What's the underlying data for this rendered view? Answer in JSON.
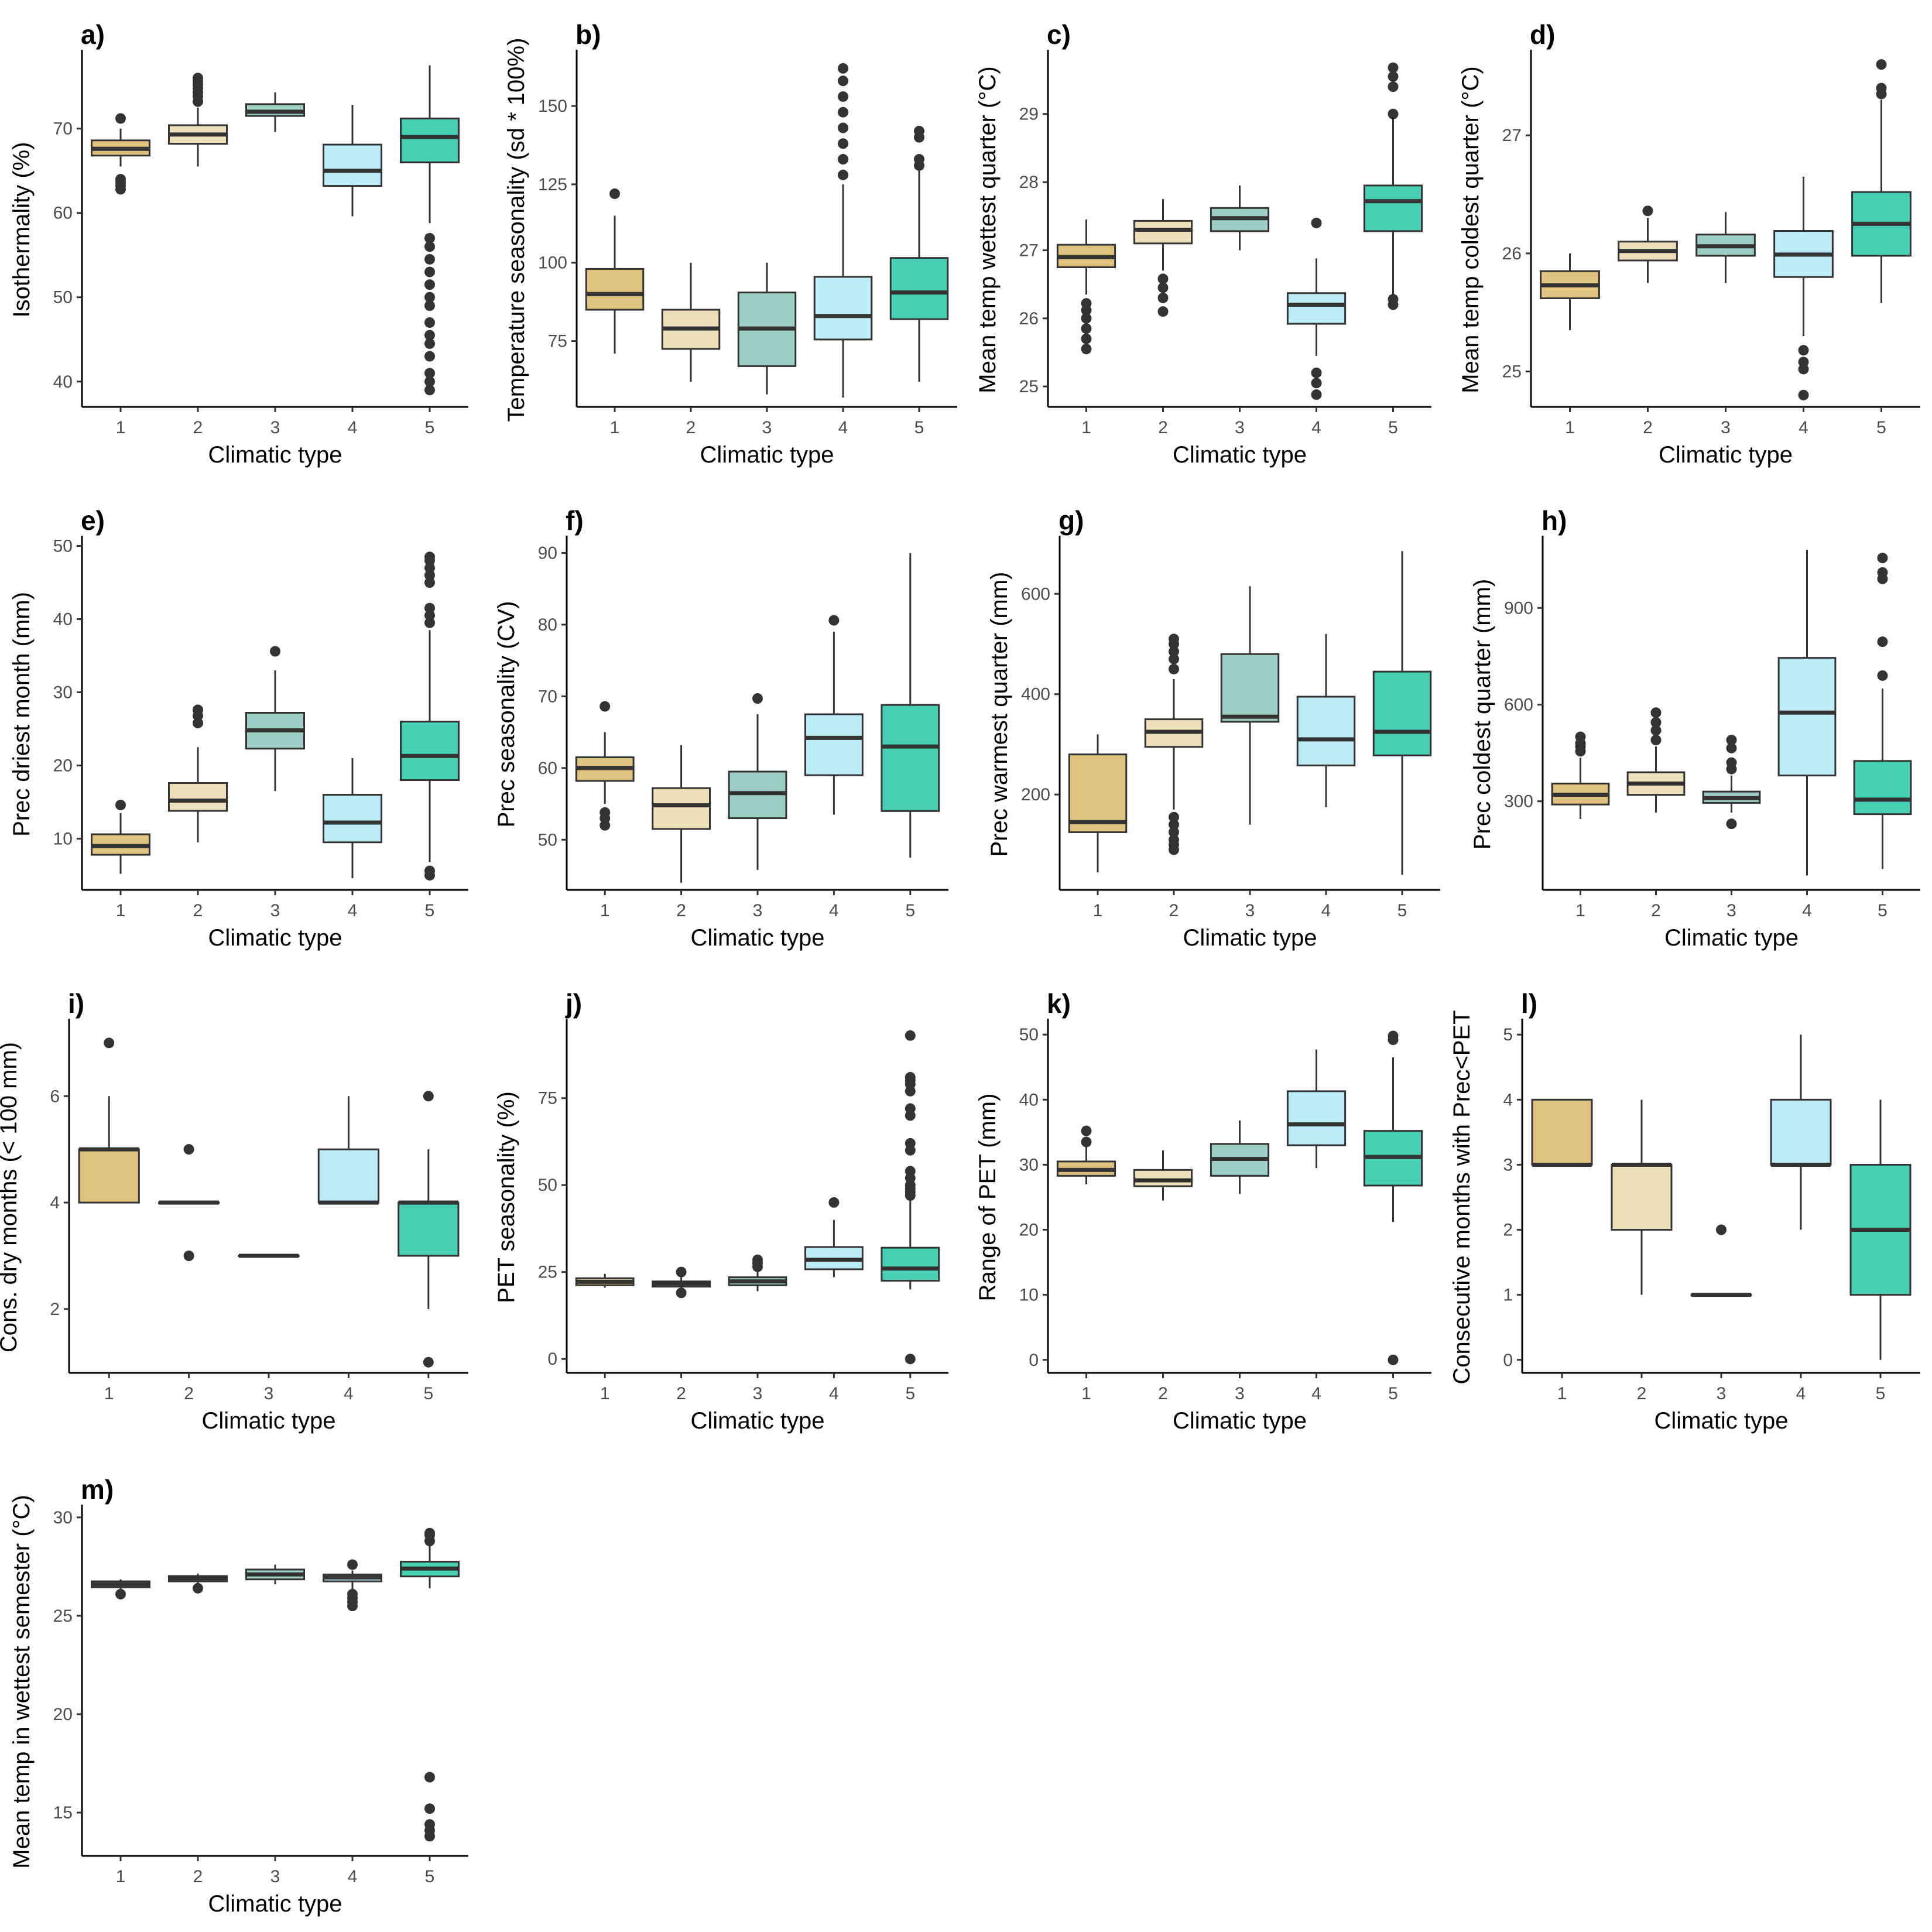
{
  "colors": [
    "#DFC27D",
    "#EEDFBB",
    "#9CCEC5",
    "#BDECF9",
    "#48D0B5"
  ],
  "chart_data": [
    {
      "label": "a)",
      "type": "box",
      "xlabel": "Climatic type",
      "ylabel": "Isothermality (%)",
      "categories": [
        "1",
        "2",
        "3",
        "4",
        "5"
      ],
      "ylim": [
        37,
        79
      ],
      "yticks": [
        40,
        50,
        60,
        70
      ],
      "boxes": [
        {
          "low": 65.5,
          "q1": 66.8,
          "median": 67.6,
          "q3": 68.6,
          "high": 70,
          "outliers": [
            71.2,
            62.8,
            63.2,
            63.6,
            64.0
          ]
        },
        {
          "low": 65.5,
          "q1": 68.2,
          "median": 69.3,
          "q3": 70.4,
          "high": 72.5,
          "outliers": [
            73.2,
            73.8,
            74.3,
            74.8,
            75.2,
            75.6,
            76.0
          ]
        },
        {
          "low": 69.6,
          "q1": 71.5,
          "median": 72.0,
          "q3": 72.9,
          "high": 74.3,
          "outliers": []
        },
        {
          "low": 59.6,
          "q1": 63.2,
          "median": 65.0,
          "q3": 68.1,
          "high": 72.8,
          "outliers": []
        },
        {
          "low": 58.8,
          "q1": 66.0,
          "median": 69.0,
          "q3": 71.2,
          "high": 77.5,
          "outliers": [
            39,
            40,
            41,
            43,
            44.5,
            45.5,
            47,
            49,
            50,
            51.5,
            53,
            54.5,
            56,
            57
          ]
        }
      ]
    },
    {
      "label": "b)",
      "type": "box",
      "xlabel": "Climatic type",
      "ylabel": "Temperature seasonality (sd * 100%)",
      "categories": [
        "1",
        "2",
        "3",
        "4",
        "5"
      ],
      "ylim": [
        54,
        167
      ],
      "yticks": [
        75,
        100,
        125,
        150
      ],
      "boxes": [
        {
          "low": 71,
          "q1": 85,
          "median": 90,
          "q3": 98,
          "high": 115,
          "outliers": [
            122
          ]
        },
        {
          "low": 62,
          "q1": 72.5,
          "median": 79,
          "q3": 85,
          "high": 100,
          "outliers": []
        },
        {
          "low": 58,
          "q1": 67,
          "median": 79,
          "q3": 90.5,
          "high": 100,
          "outliers": []
        },
        {
          "low": 57,
          "q1": 75.5,
          "median": 83,
          "q3": 95.5,
          "high": 125,
          "outliers": [
            128,
            133,
            138,
            143,
            148,
            153,
            158,
            162
          ]
        },
        {
          "low": 62,
          "q1": 82,
          "median": 90.5,
          "q3": 101.5,
          "high": 130,
          "outliers": [
            131,
            133,
            140,
            142
          ]
        }
      ]
    },
    {
      "label": "c)",
      "type": "box",
      "xlabel": "Climatic type",
      "ylabel": "Mean temp wettest quarter (°C)",
      "categories": [
        "1",
        "2",
        "3",
        "4",
        "5"
      ],
      "ylim": [
        24.7,
        29.9
      ],
      "yticks": [
        25,
        26,
        27,
        28,
        29
      ],
      "boxes": [
        {
          "low": 26.35,
          "q1": 26.75,
          "median": 26.9,
          "q3": 27.08,
          "high": 27.45,
          "outliers": [
            25.55,
            25.7,
            25.85,
            26.0,
            26.12,
            26.22
          ]
        },
        {
          "low": 26.7,
          "q1": 27.1,
          "median": 27.3,
          "q3": 27.43,
          "high": 27.75,
          "outliers": [
            26.1,
            26.3,
            26.45,
            26.58
          ]
        },
        {
          "low": 27.0,
          "q1": 27.28,
          "median": 27.47,
          "q3": 27.62,
          "high": 27.95,
          "outliers": []
        },
        {
          "low": 25.45,
          "q1": 25.92,
          "median": 26.2,
          "q3": 26.37,
          "high": 26.88,
          "outliers": [
            24.88,
            25.05,
            25.2,
            27.4
          ]
        },
        {
          "low": 26.35,
          "q1": 27.28,
          "median": 27.72,
          "q3": 27.95,
          "high": 28.95,
          "outliers": [
            26.2,
            26.28,
            29.0,
            29.4,
            29.55,
            29.68
          ]
        }
      ]
    },
    {
      "label": "d)",
      "type": "box",
      "xlabel": "Climatic type",
      "ylabel": "Mean temp coldest quarter (°C)",
      "categories": [
        "1",
        "2",
        "3",
        "4",
        "5"
      ],
      "ylim": [
        24.7,
        27.7
      ],
      "yticks": [
        25,
        26,
        27
      ],
      "boxes": [
        {
          "low": 25.35,
          "q1": 25.62,
          "median": 25.73,
          "q3": 25.85,
          "high": 26.0,
          "outliers": []
        },
        {
          "low": 25.75,
          "q1": 25.94,
          "median": 26.02,
          "q3": 26.1,
          "high": 26.3,
          "outliers": [
            26.36
          ]
        },
        {
          "low": 25.75,
          "q1": 25.98,
          "median": 26.06,
          "q3": 26.16,
          "high": 26.35,
          "outliers": []
        },
        {
          "low": 25.3,
          "q1": 25.8,
          "median": 25.99,
          "q3": 26.19,
          "high": 26.65,
          "outliers": [
            24.8,
            25.02,
            25.08,
            25.18
          ]
        },
        {
          "low": 25.58,
          "q1": 25.98,
          "median": 26.25,
          "q3": 26.52,
          "high": 27.3,
          "outliers": [
            27.35,
            27.4,
            27.6
          ]
        }
      ]
    },
    {
      "label": "e)",
      "type": "box",
      "xlabel": "Climatic type",
      "ylabel": "Prec driest month (mm)",
      "categories": [
        "1",
        "2",
        "3",
        "4",
        "5"
      ],
      "ylim": [
        3,
        51
      ],
      "yticks": [
        10,
        20,
        30,
        40,
        50
      ],
      "boxes": [
        {
          "low": 5.2,
          "q1": 7.8,
          "median": 9.0,
          "q3": 10.6,
          "high": 13.5,
          "outliers": [
            14.6
          ]
        },
        {
          "low": 9.5,
          "q1": 13.8,
          "median": 15.2,
          "q3": 17.6,
          "high": 22.5,
          "outliers": [
            25.8,
            26.8,
            27.6
          ]
        },
        {
          "low": 16.5,
          "q1": 22.3,
          "median": 24.8,
          "q3": 27.2,
          "high": 33.0,
          "outliers": [
            35.6
          ]
        },
        {
          "low": 4.6,
          "q1": 9.5,
          "median": 12.2,
          "q3": 16.0,
          "high": 21.0,
          "outliers": []
        },
        {
          "low": 6.8,
          "q1": 18.0,
          "median": 21.3,
          "q3": 26.0,
          "high": 38.5,
          "outliers": [
            5.0,
            5.6,
            39.5,
            40.5,
            41.5,
            45,
            46,
            47,
            48,
            48.5
          ]
        }
      ]
    },
    {
      "label": "f)",
      "type": "box",
      "xlabel": "Climatic type",
      "ylabel": "Prec seasonality (CV)",
      "categories": [
        "1",
        "2",
        "3",
        "4",
        "5"
      ],
      "ylim": [
        43,
        92
      ],
      "yticks": [
        50,
        60,
        70,
        80,
        90
      ],
      "boxes": [
        {
          "low": 55,
          "q1": 58.2,
          "median": 60,
          "q3": 61.5,
          "high": 65,
          "outliers": [
            68.6,
            52,
            53,
            53.8
          ]
        },
        {
          "low": 44,
          "q1": 51.5,
          "median": 54.8,
          "q3": 57.2,
          "high": 63.2,
          "outliers": []
        },
        {
          "low": 45.8,
          "q1": 53,
          "median": 56.5,
          "q3": 59.5,
          "high": 67.5,
          "outliers": [
            69.7
          ]
        },
        {
          "low": 53.5,
          "q1": 59,
          "median": 64.2,
          "q3": 67.5,
          "high": 79,
          "outliers": [
            80.6
          ]
        },
        {
          "low": 47.5,
          "q1": 54,
          "median": 63,
          "q3": 68.8,
          "high": 90,
          "outliers": []
        }
      ]
    },
    {
      "label": "g)",
      "type": "box",
      "xlabel": "Climatic type",
      "ylabel": "Prec warmest quarter (mm)",
      "categories": [
        "1",
        "2",
        "3",
        "4",
        "5"
      ],
      "ylim": [
        10,
        710
      ],
      "yticks": [
        200,
        400,
        600
      ],
      "boxes": [
        {
          "low": 45,
          "q1": 125,
          "median": 145,
          "q3": 280,
          "high": 320,
          "outliers": []
        },
        {
          "low": 170,
          "q1": 295,
          "median": 325,
          "q3": 350,
          "high": 430,
          "outliers": [
            90,
            100,
            110,
            125,
            140,
            155,
            450,
            470,
            485,
            500,
            510
          ]
        },
        {
          "low": 140,
          "q1": 345,
          "median": 355,
          "q3": 480,
          "high": 615,
          "outliers": []
        },
        {
          "low": 175,
          "q1": 258,
          "median": 310,
          "q3": 395,
          "high": 520,
          "outliers": []
        },
        {
          "low": 40,
          "q1": 278,
          "median": 325,
          "q3": 445,
          "high": 685,
          "outliers": []
        }
      ]
    },
    {
      "label": "h)",
      "type": "box",
      "xlabel": "Climatic type",
      "ylabel": "Prec coldest quarter (mm)",
      "categories": [
        "1",
        "2",
        "3",
        "4",
        "5"
      ],
      "ylim": [
        25,
        1115
      ],
      "yticks": [
        300,
        600,
        900
      ],
      "boxes": [
        {
          "low": 245,
          "q1": 290,
          "median": 320,
          "q3": 355,
          "high": 435,
          "outliers": [
            455,
            470,
            480,
            500
          ]
        },
        {
          "low": 265,
          "q1": 320,
          "median": 355,
          "q3": 390,
          "high": 470,
          "outliers": [
            490,
            520,
            545,
            575
          ]
        },
        {
          "low": 265,
          "q1": 295,
          "median": 310,
          "q3": 330,
          "high": 380,
          "outliers": [
            230,
            400,
            420,
            465,
            490
          ]
        },
        {
          "low": 70,
          "q1": 380,
          "median": 575,
          "q3": 745,
          "high": 1080,
          "outliers": []
        },
        {
          "low": 90,
          "q1": 260,
          "median": 305,
          "q3": 425,
          "high": 650,
          "outliers": [
            690,
            795,
            990,
            1010,
            1055
          ]
        }
      ]
    },
    {
      "label": "i)",
      "type": "box",
      "xlabel": "Climatic type",
      "ylabel": "Cons. dry months (< 100 mm)",
      "categories": [
        "1",
        "2",
        "3",
        "4",
        "5"
      ],
      "ylim": [
        0.8,
        7.4
      ],
      "yticks": [
        2,
        4,
        6
      ],
      "boxes": [
        {
          "low": 4,
          "q1": 4,
          "median": 5,
          "q3": 5,
          "high": 6,
          "outliers": [
            7
          ]
        },
        {
          "low": 4,
          "q1": 4,
          "median": 4,
          "q3": 4,
          "high": 4,
          "outliers": [
            3,
            5
          ]
        },
        {
          "low": 3,
          "q1": 3,
          "median": 3,
          "q3": 3,
          "high": 3,
          "outliers": []
        },
        {
          "low": 4,
          "q1": 4,
          "median": 4,
          "q3": 5,
          "high": 6,
          "outliers": []
        },
        {
          "low": 2,
          "q1": 3,
          "median": 4,
          "q3": 4,
          "high": 5,
          "outliers": [
            1,
            6
          ]
        }
      ]
    },
    {
      "label": "j)",
      "type": "box",
      "xlabel": "Climatic type",
      "ylabel": "PET seasonality (%)",
      "categories": [
        "1",
        "2",
        "3",
        "4",
        "5"
      ],
      "ylim": [
        -4,
        97
      ],
      "yticks": [
        0,
        25,
        50,
        75
      ],
      "boxes": [
        {
          "low": 20.5,
          "q1": 21.2,
          "median": 22.2,
          "q3": 23.2,
          "high": 24.5,
          "outliers": []
        },
        {
          "low": 19.5,
          "q1": 20.8,
          "median": 21.6,
          "q3": 22.3,
          "high": 23.5,
          "outliers": [
            25,
            19
          ]
        },
        {
          "low": 19.5,
          "q1": 21.2,
          "median": 22.3,
          "q3": 23.5,
          "high": 25.5,
          "outliers": [
            26.5,
            27.5,
            28.5
          ]
        },
        {
          "low": 23.5,
          "q1": 25.8,
          "median": 28.5,
          "q3": 32.2,
          "high": 40,
          "outliers": [
            45
          ]
        },
        {
          "low": 20,
          "q1": 22.5,
          "median": 26,
          "q3": 32,
          "high": 46,
          "outliers": [
            0,
            47,
            48,
            49,
            50,
            52,
            54,
            60,
            62,
            70,
            72,
            77,
            79,
            80,
            81,
            93
          ]
        }
      ]
    },
    {
      "label": "k)",
      "type": "box",
      "xlabel": "Climatic type",
      "ylabel": "Range of PET (mm)",
      "categories": [
        "1",
        "2",
        "3",
        "4",
        "5"
      ],
      "ylim": [
        -2,
        52
      ],
      "yticks": [
        0,
        10,
        20,
        30,
        40,
        50
      ],
      "boxes": [
        {
          "low": 27,
          "q1": 28.3,
          "median": 29.2,
          "q3": 30.5,
          "high": 33,
          "outliers": [
            33.5,
            35.2
          ]
        },
        {
          "low": 24.5,
          "q1": 26.7,
          "median": 27.6,
          "q3": 29.2,
          "high": 32.2,
          "outliers": []
        },
        {
          "low": 25.5,
          "q1": 28.3,
          "median": 30.9,
          "q3": 33.2,
          "high": 36.8,
          "outliers": []
        },
        {
          "low": 29.5,
          "q1": 33,
          "median": 36.2,
          "q3": 41.3,
          "high": 47.7,
          "outliers": []
        },
        {
          "low": 21.2,
          "q1": 26.8,
          "median": 31.2,
          "q3": 35.2,
          "high": 46.5,
          "outliers": [
            0,
            49.2,
            49.8
          ]
        }
      ]
    },
    {
      "label": "l)",
      "type": "box",
      "xlabel": "Climatic type",
      "ylabel": "Consecutive months with Prec<PET",
      "categories": [
        "1",
        "2",
        "3",
        "4",
        "5"
      ],
      "ylim": [
        -0.2,
        5.2
      ],
      "yticks": [
        0,
        1,
        2,
        3,
        4,
        5
      ],
      "boxes": [
        {
          "low": 3,
          "q1": 3,
          "median": 3,
          "q3": 4,
          "high": 4,
          "outliers": []
        },
        {
          "low": 1,
          "q1": 2,
          "median": 3,
          "q3": 3,
          "high": 4,
          "outliers": []
        },
        {
          "low": 1,
          "q1": 1,
          "median": 1,
          "q3": 1,
          "high": 1,
          "outliers": [
            2
          ]
        },
        {
          "low": 2,
          "q1": 3,
          "median": 3,
          "q3": 4,
          "high": 5,
          "outliers": []
        },
        {
          "low": 0,
          "q1": 1,
          "median": 2,
          "q3": 3,
          "high": 4,
          "outliers": []
        }
      ]
    },
    {
      "label": "m)",
      "type": "box",
      "xlabel": "Climatic type",
      "ylabel": "Mean temp in wettest semester (°C)",
      "categories": [
        "1",
        "2",
        "3",
        "4",
        "5"
      ],
      "ylim": [
        12.8,
        30.5
      ],
      "yticks": [
        15,
        20,
        25,
        30
      ],
      "boxes": [
        {
          "low": 26.3,
          "q1": 26.45,
          "median": 26.6,
          "q3": 26.75,
          "high": 26.85,
          "outliers": [
            26.1
          ]
        },
        {
          "low": 26.6,
          "q1": 26.75,
          "median": 26.9,
          "q3": 27.02,
          "high": 27.15,
          "outliers": [
            26.4
          ]
        },
        {
          "low": 26.6,
          "q1": 26.85,
          "median": 27.1,
          "q3": 27.35,
          "high": 27.6,
          "outliers": []
        },
        {
          "low": 26.3,
          "q1": 26.75,
          "median": 26.95,
          "q3": 27.1,
          "high": 27.3,
          "outliers": [
            25.5,
            25.7,
            25.9,
            26.1,
            27.6
          ]
        },
        {
          "low": 26.4,
          "q1": 27.0,
          "median": 27.4,
          "q3": 27.75,
          "high": 28.6,
          "outliers": [
            13.8,
            14.1,
            14.4,
            15.2,
            16.8,
            28.8,
            29.1,
            29.2
          ]
        }
      ]
    }
  ]
}
